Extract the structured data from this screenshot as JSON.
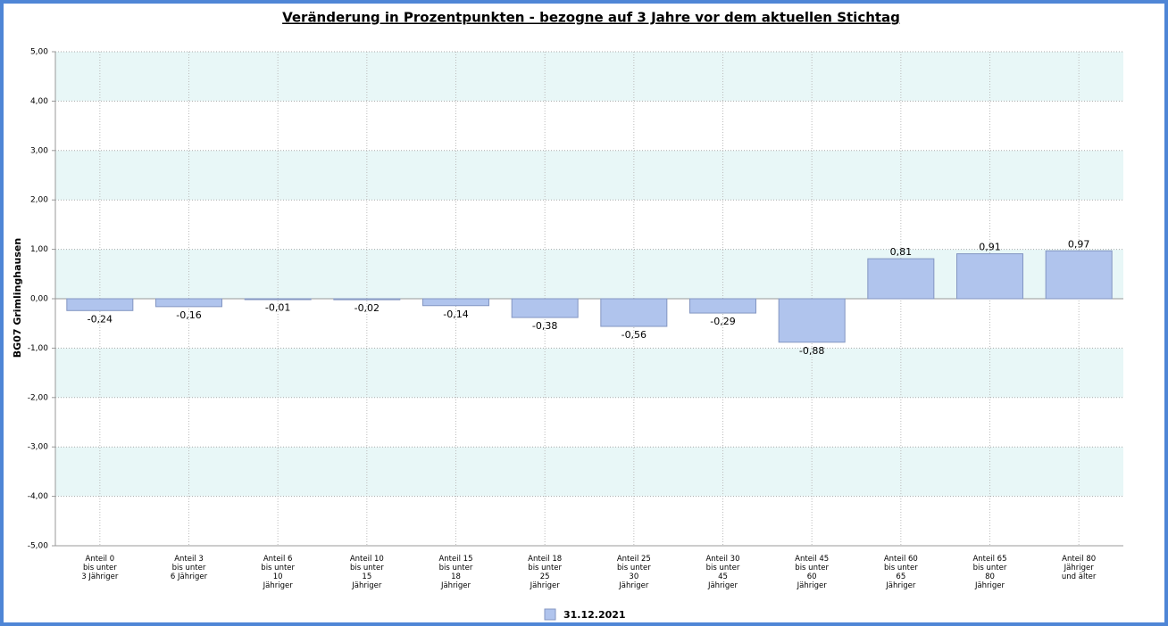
{
  "chart_data": {
    "type": "bar",
    "title": "Veränderung in Prozentpunkten - bezogne auf 3 Jahre vor dem aktuellen Stichtag",
    "y_label": "BG07 Grimlinghausen",
    "categories": [
      "Anteil 0\nbis unter\n3 Jähriger",
      "Anteil 3\nbis unter\n6 Jähriger",
      "Anteil 6\nbis unter\n10\nJähriger",
      "Anteil 10\nbis unter\n15\nJähriger",
      "Anteil 15\nbis unter\n18\nJähriger",
      "Anteil 18\nbis unter\n25\nJähriger",
      "Anteil 25\nbis unter\n30\nJähriger",
      "Anteil 30\nbis unter\n45\nJähriger",
      "Anteil 45\nbis unter\n60\nJähriger",
      "Anteil 60\nbis unter\n65\nJähriger",
      "Anteil 65\nbis unter\n80\nJähriger",
      "Anteil 80\nJähriger\nund älter"
    ],
    "series": [
      {
        "name": "31.12.2021",
        "color": "#b0c4ed",
        "values": [
          -0.24,
          -0.16,
          -0.01,
          -0.02,
          -0.14,
          -0.38,
          -0.56,
          -0.29,
          -0.88,
          0.81,
          0.91,
          0.97
        ],
        "value_labels": [
          "-0,24",
          "-0,16",
          "-0,01",
          "-0,02",
          "-0,14",
          "-0,38",
          "-0,56",
          "-0,29",
          "-0,88",
          "0,81",
          "0,91",
          "0,97"
        ]
      }
    ],
    "ylim": [
      -5,
      5
    ],
    "yticks": [
      {
        "value": -5,
        "label": "-5,00"
      },
      {
        "value": -4,
        "label": "-4,00"
      },
      {
        "value": -3,
        "label": "-3,00"
      },
      {
        "value": -2,
        "label": "-2,00"
      },
      {
        "value": -1,
        "label": "-1,00"
      },
      {
        "value": 0,
        "label": "0,00"
      },
      {
        "value": 1,
        "label": "1,00"
      },
      {
        "value": 2,
        "label": "2,00"
      },
      {
        "value": 3,
        "label": "3,00"
      },
      {
        "value": 4,
        "label": "4,00"
      },
      {
        "value": 5,
        "label": "5,00"
      }
    ],
    "grid": true,
    "legend": "bottom"
  }
}
